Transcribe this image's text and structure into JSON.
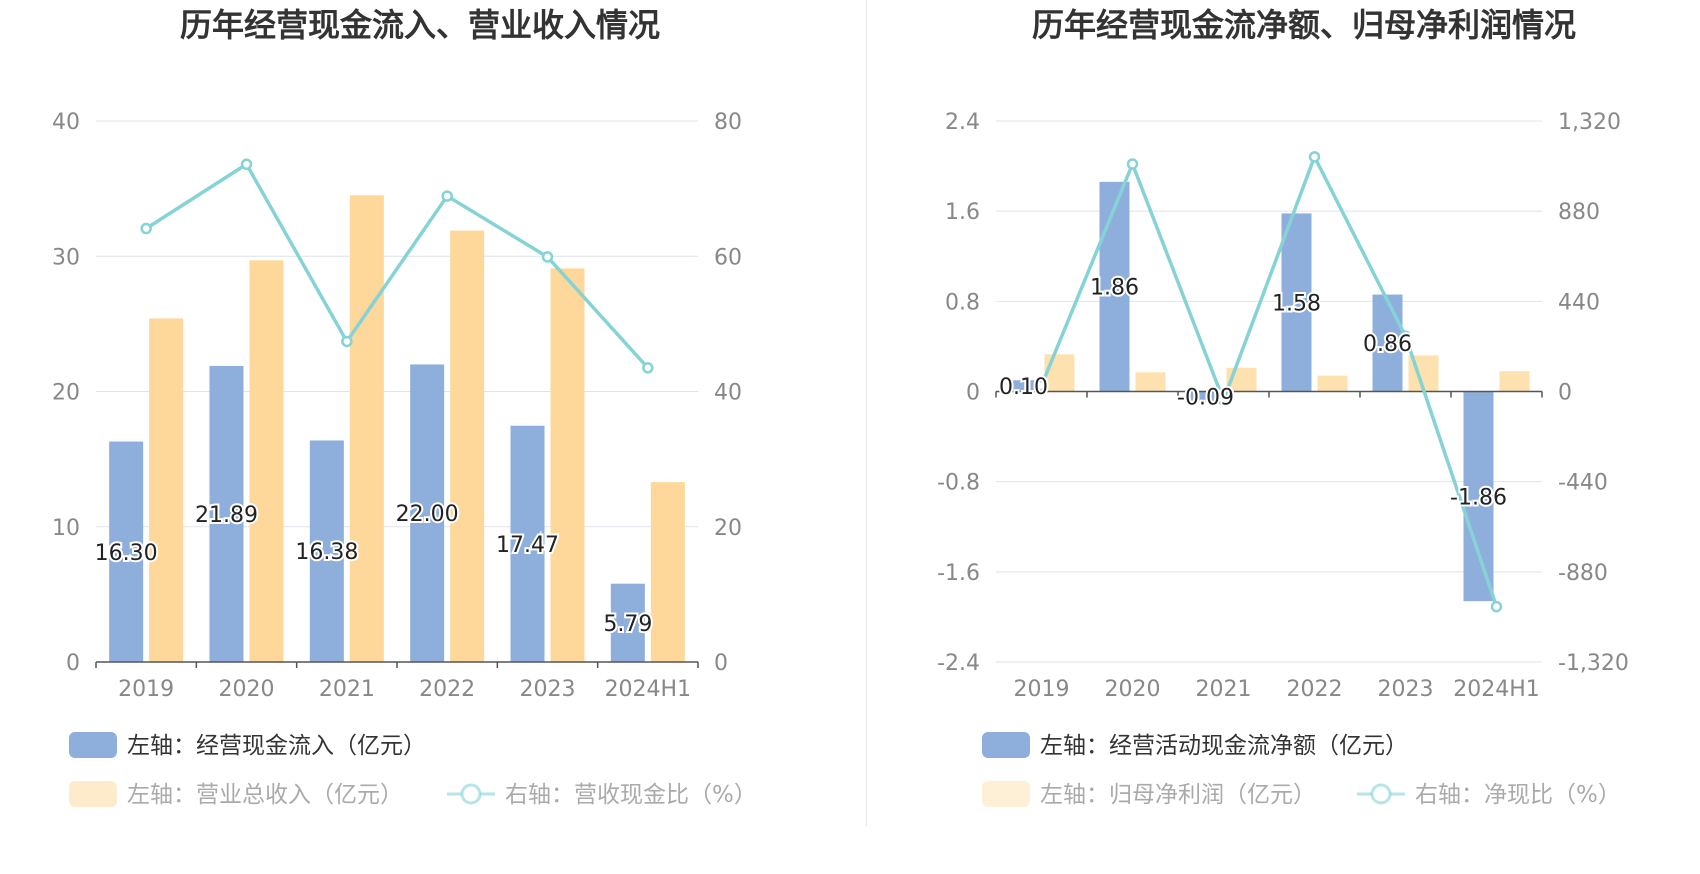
{
  "chart_data": [
    {
      "type": "bar",
      "title": "历年经营现金流入、营业收入情况",
      "categories": [
        "2019",
        "2020",
        "2021",
        "2022",
        "2023",
        "2024H1"
      ],
      "y_left": {
        "min": 0,
        "max": 40,
        "ticks": [
          "0",
          "10",
          "20",
          "30",
          "40"
        ]
      },
      "y_right": {
        "min": 0,
        "max": 80,
        "ticks": [
          "0",
          "20",
          "40",
          "60",
          "80"
        ]
      },
      "series": [
        {
          "name": "左轴：经营现金流入（亿元）",
          "kind": "bar",
          "axis": "left",
          "color": "#8eaedc",
          "values": [
            16.3,
            21.89,
            16.38,
            22.0,
            17.47,
            5.79
          ],
          "labels": [
            "16.30",
            "21.89",
            "16.38",
            "22.00",
            "17.47",
            "5.79"
          ]
        },
        {
          "name": "左轴：营业总收入（亿元）",
          "kind": "bar",
          "axis": "left",
          "color": "#fdd89a",
          "values": [
            25.4,
            29.7,
            34.5,
            31.9,
            29.1,
            13.3
          ]
        },
        {
          "name": "右轴：营收现金比（%）",
          "kind": "line",
          "axis": "right",
          "color": "#86d3d5",
          "values": [
            64.1,
            73.6,
            47.4,
            68.9,
            59.9,
            43.5
          ]
        }
      ],
      "legend": "bottom-left"
    },
    {
      "type": "bar",
      "title": "历年经营现金流净额、归母净利润情况",
      "categories": [
        "2019",
        "2020",
        "2021",
        "2022",
        "2023",
        "2024H1"
      ],
      "y_left": {
        "min": -2.4,
        "max": 2.4,
        "ticks": [
          "-2.4",
          "-1.6",
          "-0.8",
          "0",
          "0.8",
          "1.6",
          "2.4"
        ]
      },
      "y_right": {
        "min": -1320,
        "max": 1320,
        "ticks": [
          "-1,320",
          "-880",
          "-440",
          "0",
          "440",
          "880",
          "1,320"
        ]
      },
      "series": [
        {
          "name": "左轴：经营活动现金流净额（亿元）",
          "kind": "bar",
          "axis": "left",
          "color": "#8eaedc",
          "values": [
            0.1,
            1.86,
            -0.09,
            1.58,
            0.86,
            -1.86
          ],
          "labels": [
            "0.10",
            "1.86",
            "-0.09",
            "1.58",
            "0.86",
            "-1.86"
          ]
        },
        {
          "name": "左轴：归母净利润（亿元）",
          "kind": "bar",
          "axis": "left",
          "color": "#fde1ae",
          "values": [
            0.33,
            0.17,
            0.21,
            0.14,
            0.32,
            0.18
          ]
        },
        {
          "name": "右轴：净现比（%）",
          "kind": "line",
          "axis": "right",
          "color": "#86d3d5",
          "values": [
            29,
            1110,
            -43,
            1145,
            270,
            -1050
          ]
        }
      ],
      "legend": "bottom-left"
    }
  ]
}
